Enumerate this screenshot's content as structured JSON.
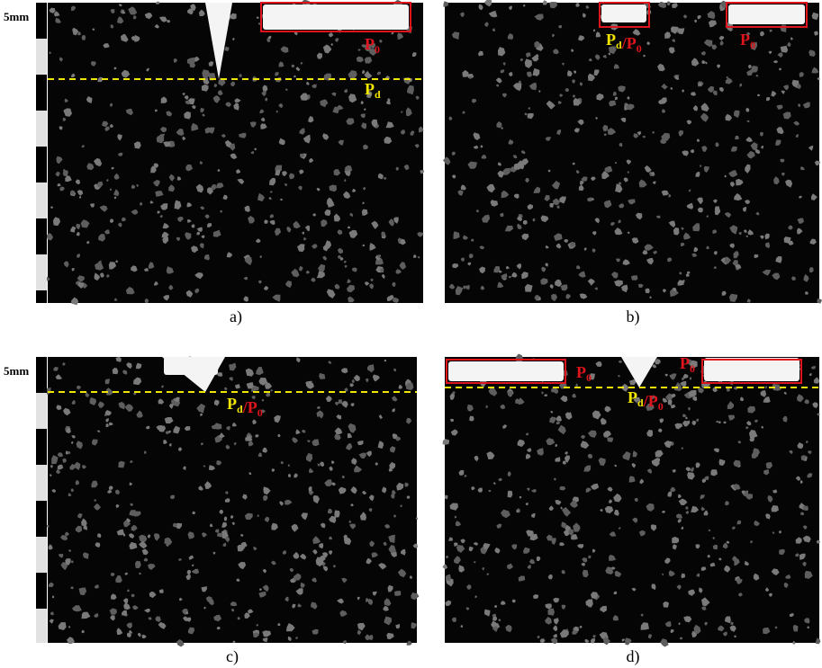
{
  "scale_label": "5mm",
  "panels": [
    {
      "caption": "a)",
      "annotations": [
        {
          "parts": [
            {
              "text": "P",
              "sub": "0",
              "color": "red"
            }
          ]
        },
        {
          "parts": [
            {
              "text": "P",
              "sub": "d",
              "color": "yellow"
            }
          ]
        }
      ]
    },
    {
      "caption": "b)",
      "annotations": [
        {
          "parts": [
            {
              "text": "P",
              "sub": "d",
              "color": "yellow"
            },
            {
              "text": "/P",
              "sub": "0",
              "color": "red"
            }
          ]
        },
        {
          "parts": [
            {
              "text": "P",
              "sub": "0",
              "color": "red"
            }
          ]
        }
      ]
    },
    {
      "caption": "c)",
      "annotations": [
        {
          "parts": [
            {
              "text": "P",
              "sub": "d",
              "color": "yellow"
            },
            {
              "text": "/P",
              "sub": "0",
              "color": "red"
            }
          ]
        }
      ]
    },
    {
      "caption": "d)",
      "annotations": [
        {
          "parts": [
            {
              "text": "P",
              "sub": "0",
              "color": "red"
            }
          ]
        },
        {
          "parts": [
            {
              "text": "P",
              "sub": "0",
              "color": "red"
            }
          ]
        },
        {
          "parts": [
            {
              "text": "P",
              "sub": "d",
              "color": "yellow"
            },
            {
              "text": "/P",
              "sub": "0",
              "color": "red"
            }
          ]
        }
      ]
    }
  ]
}
